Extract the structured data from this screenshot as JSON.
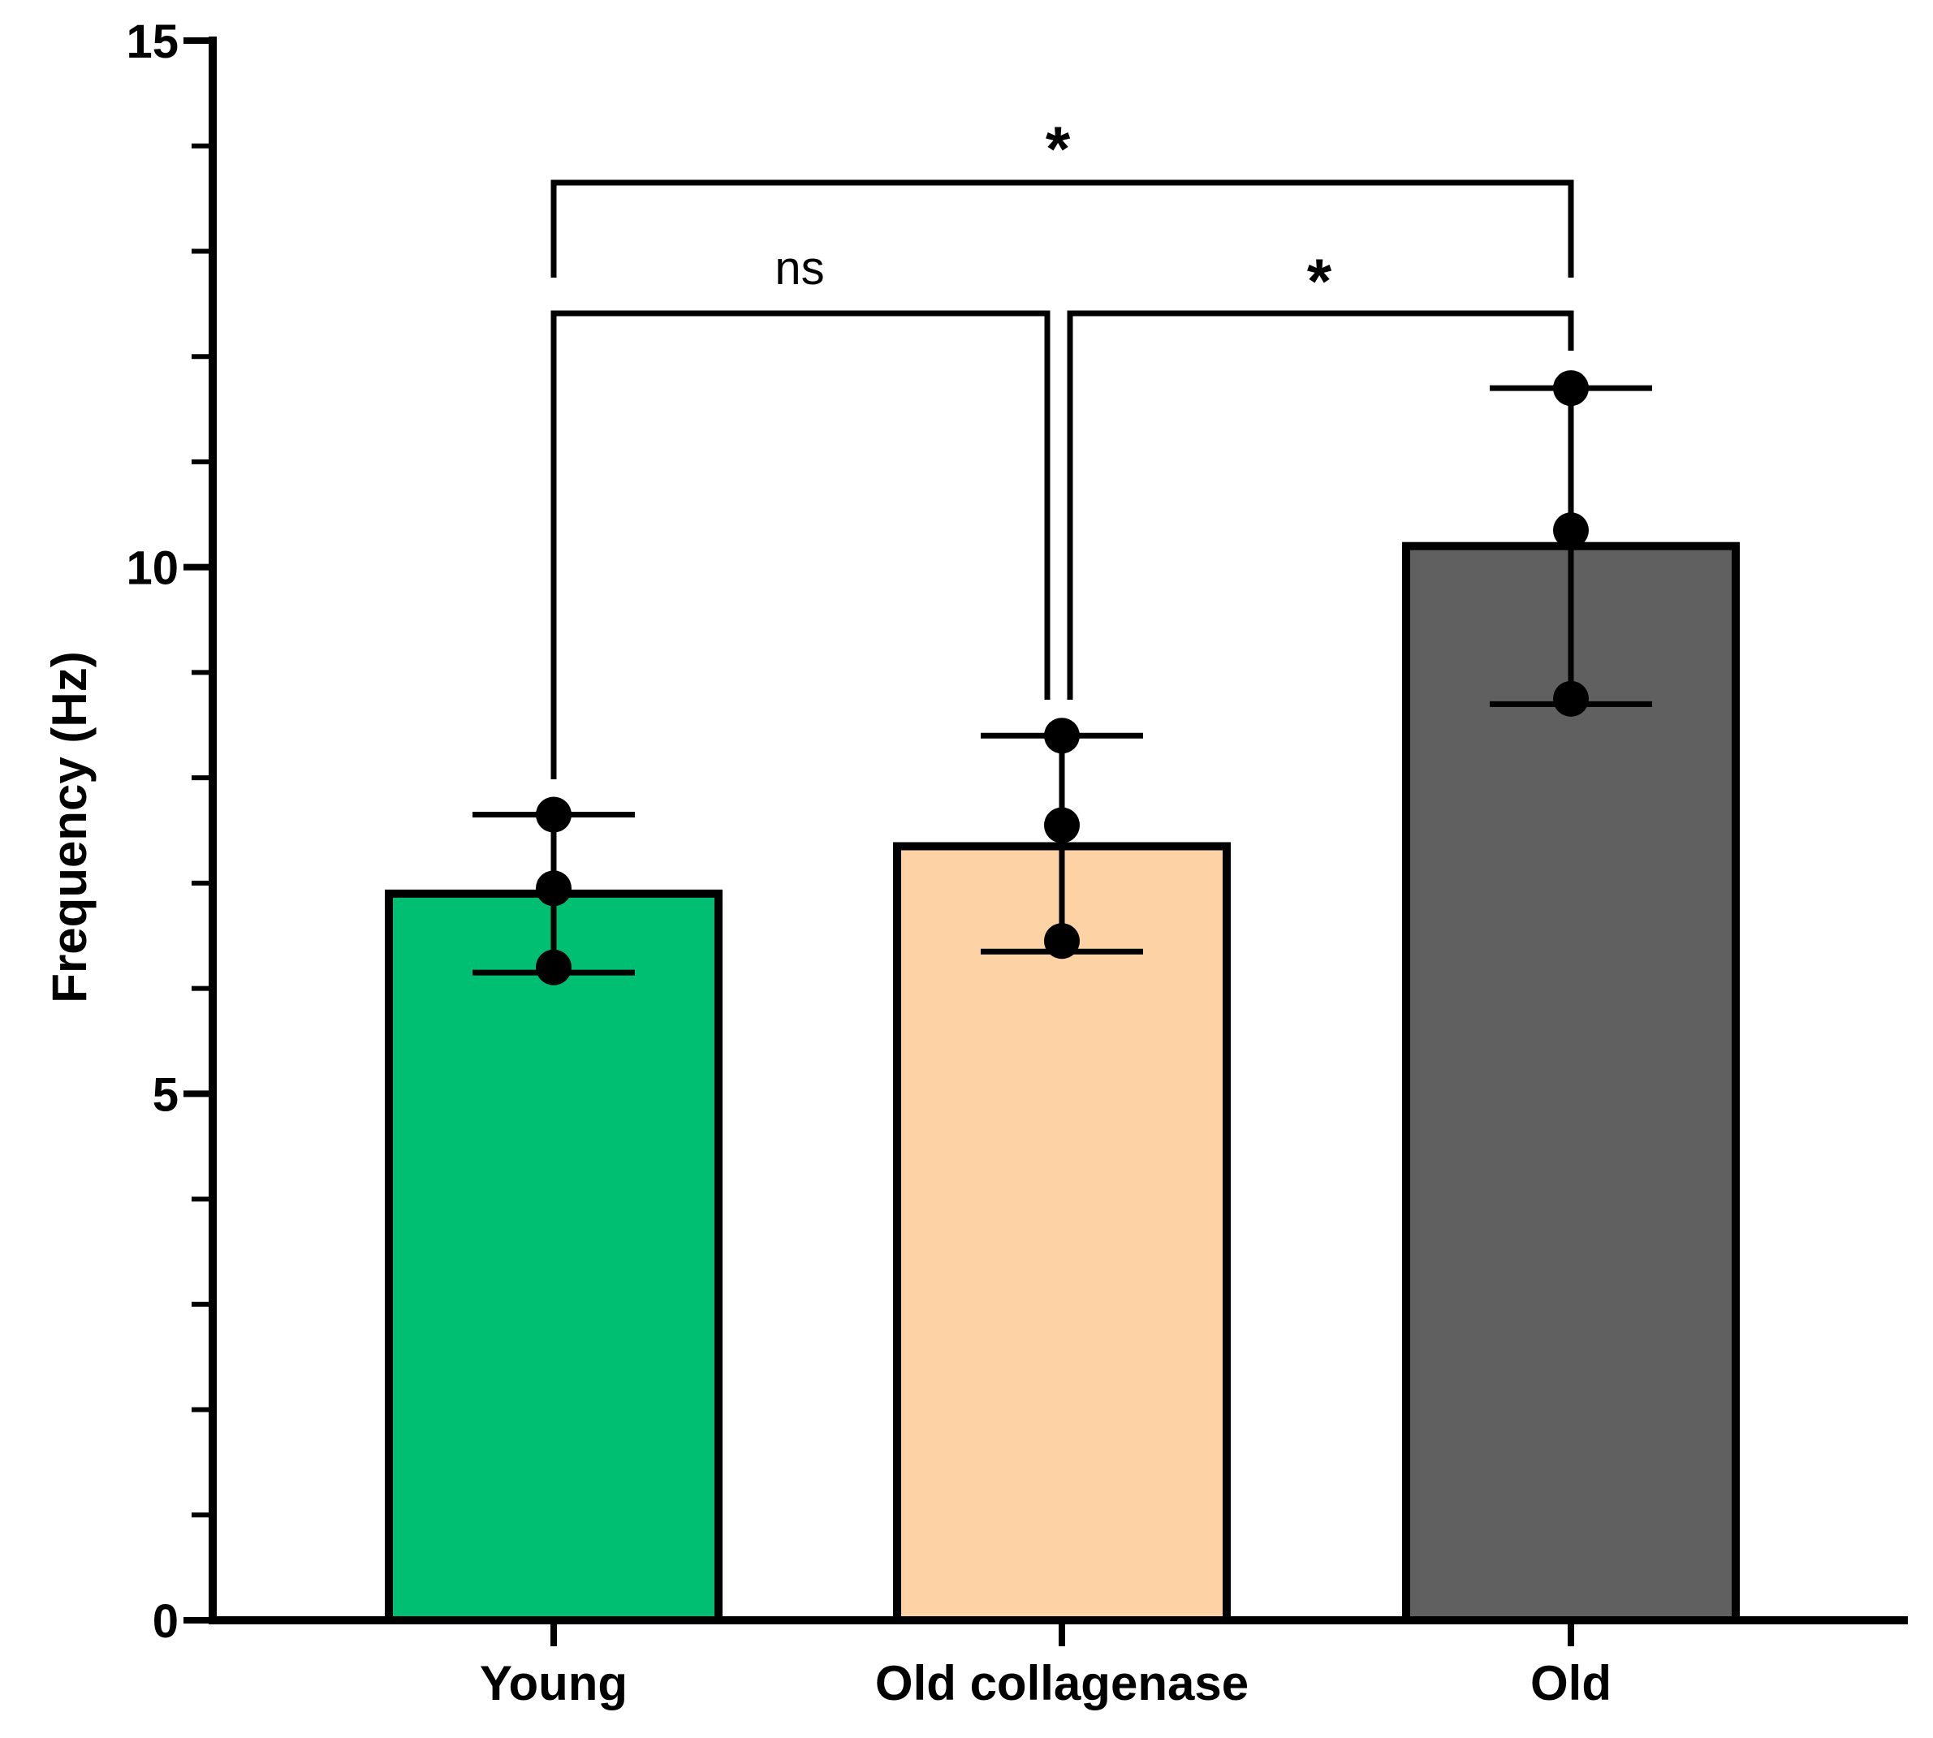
{
  "chart_data": {
    "type": "bar",
    "title": "",
    "xlabel": "",
    "ylabel": "Frequency (Hz)",
    "ylim": [
      0,
      15
    ],
    "yticks": [
      {
        "value": 0,
        "label": "0"
      },
      {
        "value": 5,
        "label": "5"
      },
      {
        "value": 10,
        "label": "10"
      },
      {
        "value": 15,
        "label": "15"
      }
    ],
    "categories": [
      "Young",
      "Old collagenase",
      "Old"
    ],
    "values": [
      6.9,
      7.35,
      10.2
    ],
    "bar_colors": [
      "#00bf72",
      "#fdd2a4",
      "#606060"
    ],
    "error_bars": [
      {
        "lower": 6.15,
        "upper": 7.65
      },
      {
        "lower": 6.35,
        "upper": 8.4
      },
      {
        "lower": 8.7,
        "upper": 11.7
      }
    ],
    "points": [
      [
        7.65,
        6.95,
        6.2
      ],
      [
        8.4,
        7.55,
        6.45
      ],
      [
        11.7,
        10.35,
        8.75
      ]
    ],
    "significance": [
      {
        "from": 0,
        "to": 1,
        "label": "ns"
      },
      {
        "from": 1,
        "to": 2,
        "label": "*"
      },
      {
        "from": 0,
        "to": 2,
        "label": "*"
      }
    ],
    "grid": false,
    "legend": "none"
  }
}
